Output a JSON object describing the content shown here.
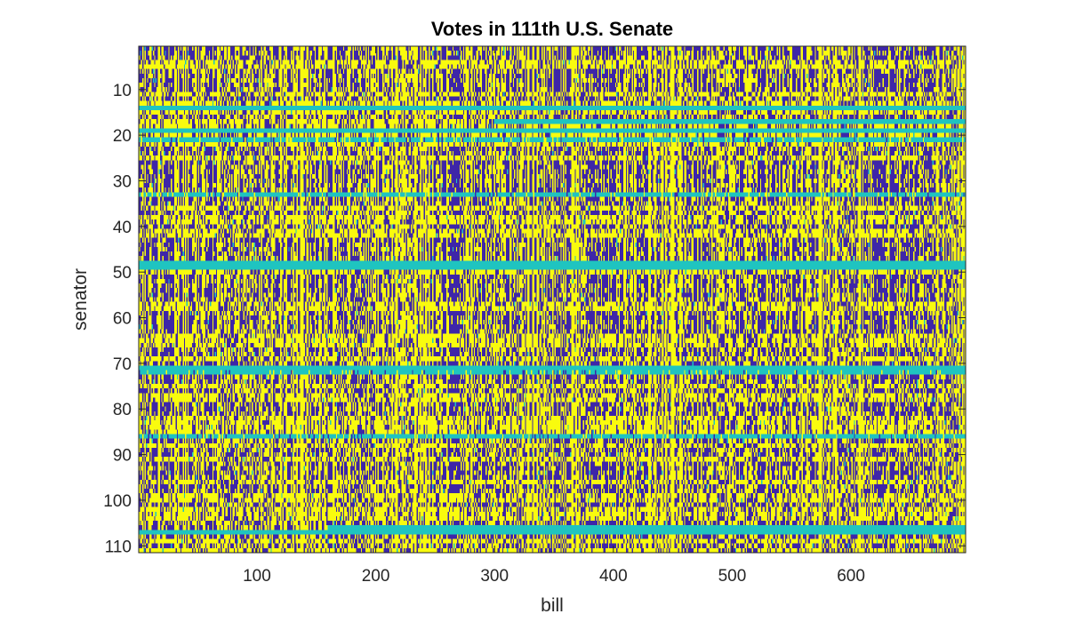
{
  "chart_data": {
    "type": "heatmap",
    "title": "Votes in 111th U.S. Senate",
    "xlabel": "bill",
    "ylabel": "senator",
    "xlim": [
      0.5,
      696.5
    ],
    "ylim": [
      0.5,
      111.5
    ],
    "y_direction": "reversed",
    "x_ticks": [
      100,
      200,
      300,
      400,
      500,
      600
    ],
    "y_ticks": [
      10,
      20,
      30,
      40,
      50,
      60,
      70,
      80,
      90,
      100,
      110
    ],
    "grid": false,
    "legend": "none",
    "colormap": {
      "-1": "#3e26a8",
      "0": "#1fc4c0",
      "1": "#f9fb0e"
    },
    "value_meaning": {
      "1": "yes",
      "-1": "no",
      "0": "not voting"
    },
    "n_senators": 111,
    "n_bills": 696,
    "absent_rows": [
      14,
      17,
      19,
      21,
      33,
      48,
      49,
      71,
      72,
      86,
      106,
      107
    ],
    "absent_row_spans": {
      "48": [
        1,
        696
      ],
      "49": [
        1,
        696
      ],
      "106": [
        160,
        696
      ],
      "107": [
        1,
        696
      ],
      "17": [
        300,
        696
      ],
      "14": [
        1,
        696
      ],
      "19": [
        1,
        696
      ],
      "71": [
        1,
        696
      ]
    }
  }
}
